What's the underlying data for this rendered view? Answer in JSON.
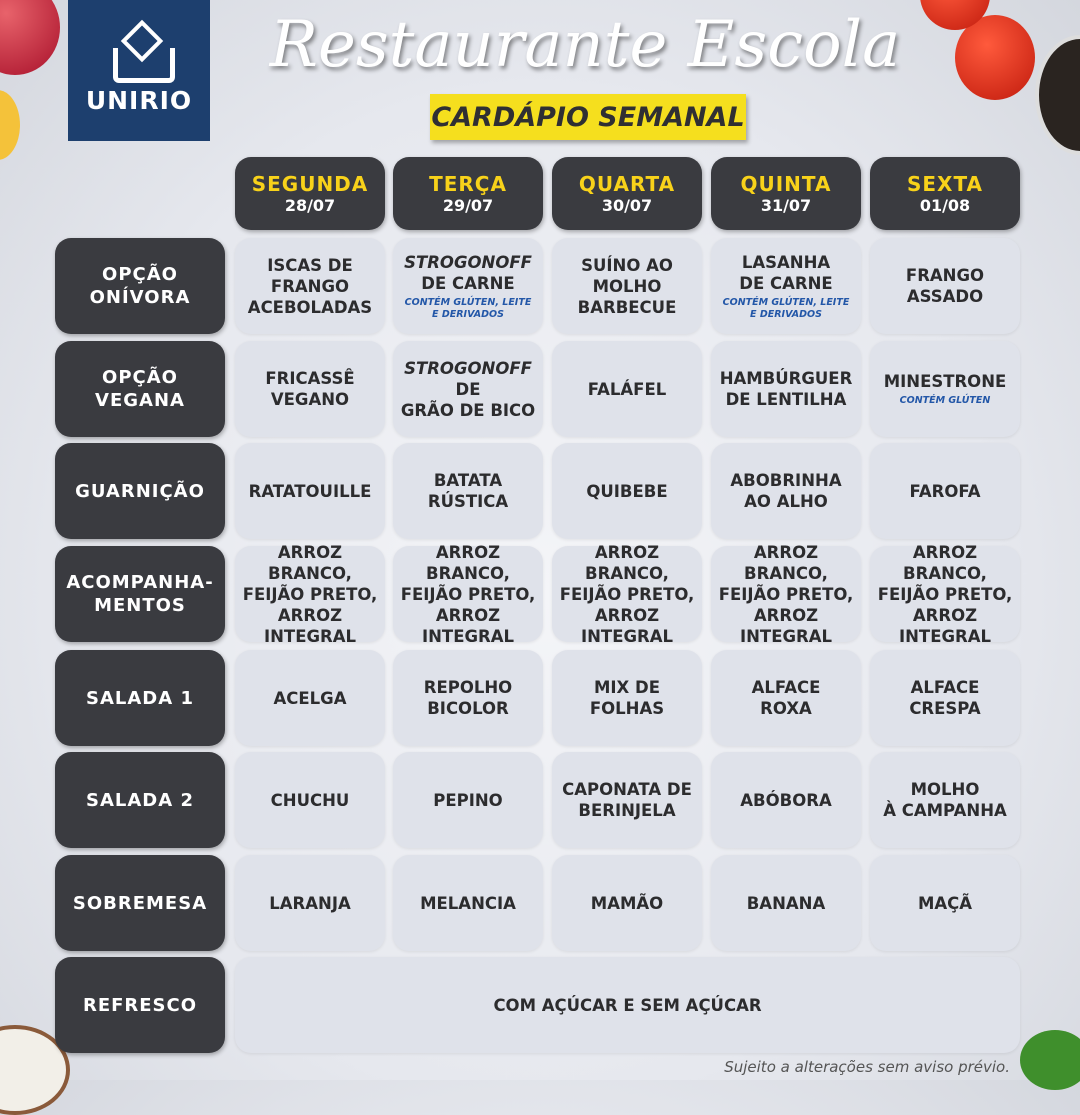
{
  "logo": "UNIRIO",
  "title": "Restaurante Escola",
  "subtitle": "CARDÁPIO SEMANAL",
  "days": [
    {
      "name": "SEGUNDA",
      "date": "28/07"
    },
    {
      "name": "TERÇA",
      "date": "29/07"
    },
    {
      "name": "QUARTA",
      "date": "30/07"
    },
    {
      "name": "QUINTA",
      "date": "31/07"
    },
    {
      "name": "SEXTA",
      "date": "01/08"
    }
  ],
  "rows": [
    {
      "label": "OPÇÃO\nONÍVORA",
      "cells": [
        {
          "main": "ISCAS DE FRANGO\nACEBOLADAS"
        },
        {
          "italic": "STROGONOFF",
          "main": "\nDE CARNE",
          "note": "CONTÉM GLÚTEN, LEITE\nE DERIVADOS"
        },
        {
          "main": "SUÍNO AO\nMOLHO\nBARBECUE"
        },
        {
          "main": "LASANHA\nDE CARNE",
          "note": "CONTÉM GLÚTEN, LEITE\nE DERIVADOS"
        },
        {
          "main": "FRANGO\nASSADO"
        }
      ]
    },
    {
      "label": "OPÇÃO\nVEGANA",
      "cells": [
        {
          "main": "FRICASSÊ\nVEGANO"
        },
        {
          "italic": "STROGONOFF",
          "main": " DE\nGRÃO DE BICO"
        },
        {
          "main": "FALÁFEL"
        },
        {
          "main": "HAMBÚRGUER\nDE LENTILHA"
        },
        {
          "main": "MINESTRONE",
          "note": "CONTÉM GLÚTEN"
        }
      ]
    },
    {
      "label": "GUARNIÇÃO",
      "cells": [
        {
          "main": "RATATOUILLE"
        },
        {
          "main": "BATATA\nRÚSTICA"
        },
        {
          "main": "QUIBEBE"
        },
        {
          "main": "ABOBRINHA\nAO ALHO"
        },
        {
          "main": "FAROFA"
        }
      ]
    },
    {
      "label": "ACOMPANHA-\nMENTOS",
      "cells": [
        {
          "main": "ARROZ BRANCO,\nFEIJÃO PRETO,\nARROZ INTEGRAL"
        },
        {
          "main": "ARROZ BRANCO,\nFEIJÃO PRETO,\nARROZ INTEGRAL"
        },
        {
          "main": "ARROZ BRANCO,\nFEIJÃO PRETO,\nARROZ INTEGRAL"
        },
        {
          "main": "ARROZ BRANCO,\nFEIJÃO PRETO,\nARROZ INTEGRAL"
        },
        {
          "main": "ARROZ BRANCO,\nFEIJÃO PRETO,\nARROZ INTEGRAL"
        }
      ]
    },
    {
      "label": "SALADA 1",
      "cells": [
        {
          "main": "ACELGA"
        },
        {
          "main": "REPOLHO\nBICOLOR"
        },
        {
          "main": "MIX DE FOLHAS"
        },
        {
          "main": "ALFACE\nROXA"
        },
        {
          "main": "ALFACE\nCRESPA"
        }
      ]
    },
    {
      "label": "SALADA 2",
      "cells": [
        {
          "main": "CHUCHU"
        },
        {
          "main": "PEPINO"
        },
        {
          "main": "CAPONATA DE\nBERINJELA"
        },
        {
          "main": "ABÓBORA"
        },
        {
          "main": "MOLHO\nÀ CAMPANHA"
        }
      ]
    },
    {
      "label": "SOBREMESA",
      "cells": [
        {
          "main": "LARANJA"
        },
        {
          "main": "MELANCIA"
        },
        {
          "main": "MAMÃO"
        },
        {
          "main": "BANANA"
        },
        {
          "main": "MAÇÃ"
        }
      ]
    },
    {
      "label": "REFRESCO",
      "span": true,
      "cells": [
        {
          "main": "COM AÇÚCAR E SEM AÇÚCAR"
        }
      ]
    }
  ],
  "footer": "Sujeito a alterações sem aviso prévio."
}
